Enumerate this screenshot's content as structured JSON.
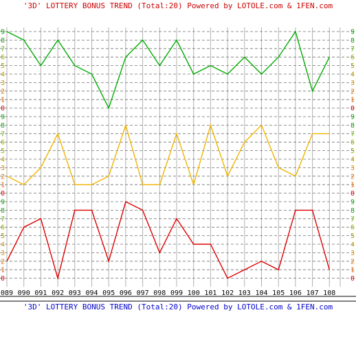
{
  "title_top": "'3D' LOTTERY BONUS TREND (Total:20)  Powered by LOTOLE.com & 1FEN.com",
  "title_bottom": "'3D' LOTTERY BONUS TREND (Total:20)  Powered by LOTOLE.com & 1FEN.com",
  "colors": {
    "title_top": "#cc0000",
    "title_bottom": "#0000cc",
    "grid_solid": "#b0b0b0",
    "grid_dash": "#707070",
    "digit_ticks": [
      "#cc0000",
      "#e06000",
      "#e07000",
      "#d09000",
      "#c0a000",
      "#a0a000",
      "#90b000",
      "#60b000",
      "#20a020",
      "#00a000"
    ]
  },
  "chart_data": {
    "type": "line",
    "x": [
      "089",
      "090",
      "091",
      "092",
      "093",
      "094",
      "095",
      "096",
      "097",
      "098",
      "099",
      "100",
      "101",
      "102",
      "103",
      "104",
      "105",
      "106",
      "107",
      "108"
    ],
    "ylim": [
      0,
      9
    ],
    "yticks": [
      "0",
      "1",
      "2",
      "3",
      "4",
      "5",
      "6",
      "7",
      "8",
      "9"
    ],
    "grid": true,
    "series": [
      {
        "color": "#00aa00",
        "values": [
          9,
          8,
          5,
          8,
          5,
          4,
          0,
          6,
          8,
          5,
          8,
          4,
          5,
          4,
          6,
          4,
          6,
          9,
          2,
          6
        ]
      },
      {
        "color": "#f0b400",
        "values": [
          2,
          1,
          3,
          7,
          1,
          1,
          2,
          8,
          1,
          1,
          7,
          1,
          8,
          2,
          6,
          8,
          3,
          2,
          7,
          7
        ]
      },
      {
        "color": "#dd0000",
        "values": [
          2,
          6,
          7,
          0,
          8,
          8,
          2,
          9,
          8,
          3,
          7,
          4,
          4,
          0,
          1,
          2,
          1,
          8,
          8,
          1
        ]
      }
    ]
  }
}
